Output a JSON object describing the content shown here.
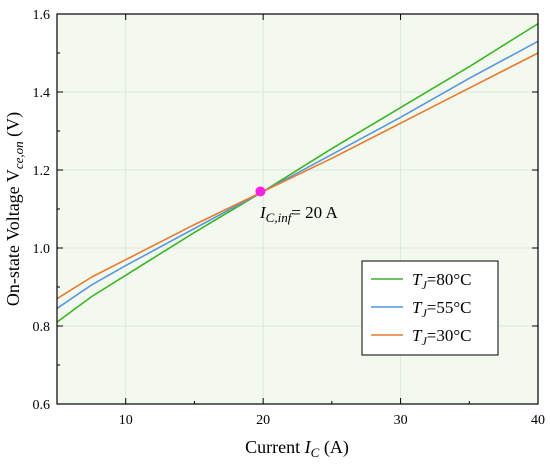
{
  "chart_data": {
    "type": "line",
    "title": "",
    "xlabel": {
      "prefix": "Current ",
      "var": "I",
      "sub": "C",
      "suffix": " (A)"
    },
    "ylabel": {
      "prefix": "On-state Voltage V",
      "sub": "ce,on",
      "suffix": " (V)"
    },
    "xlim": [
      5,
      40
    ],
    "ylim": [
      0.6,
      1.6
    ],
    "xticks": [
      10,
      20,
      30,
      40
    ],
    "yticks": [
      0.6,
      0.8,
      1.0,
      1.2,
      1.4,
      1.6
    ],
    "xtick_labels": [
      "10",
      "20",
      "30",
      "40"
    ],
    "ytick_labels": [
      "0.6",
      "0.8",
      "1.0",
      "1.2",
      "1.4",
      "1.6"
    ],
    "grid": true,
    "legend_position": "bottom-right",
    "series": [
      {
        "name": "T_J=80°C",
        "label_var": "T",
        "label_sub": "J",
        "label_rest": "=80°C",
        "color": "#3cb426",
        "x": [
          5,
          7.5,
          10,
          15,
          20,
          25,
          30,
          35,
          40
        ],
        "y": [
          0.81,
          0.875,
          0.93,
          1.04,
          1.145,
          1.255,
          1.36,
          1.465,
          1.575
        ]
      },
      {
        "name": "T_J=55°C",
        "label_var": "T",
        "label_sub": "J",
        "label_rest": "=55°C",
        "color": "#5a96dc",
        "x": [
          5,
          7.5,
          10,
          15,
          20,
          25,
          30,
          35,
          40
        ],
        "y": [
          0.845,
          0.905,
          0.955,
          1.05,
          1.145,
          1.24,
          1.335,
          1.435,
          1.53
        ]
      },
      {
        "name": "T_J=30°C",
        "label_var": "T",
        "label_sub": "J",
        "label_rest": "=30°C",
        "color": "#e87a2e",
        "x": [
          5,
          7.5,
          10,
          15,
          20,
          25,
          30,
          35,
          40
        ],
        "y": [
          0.87,
          0.925,
          0.97,
          1.06,
          1.145,
          1.23,
          1.32,
          1.41,
          1.5
        ]
      }
    ],
    "annotations": [
      {
        "x": 19.8,
        "y": 1.145,
        "marker_color": "#ff1ee6",
        "text_var": "I",
        "text_sub": "C,inf",
        "text_rest": "= 20 A"
      }
    ],
    "colors": {
      "plot_background": "#f3f9ef",
      "grid": "#dde8d8"
    }
  }
}
